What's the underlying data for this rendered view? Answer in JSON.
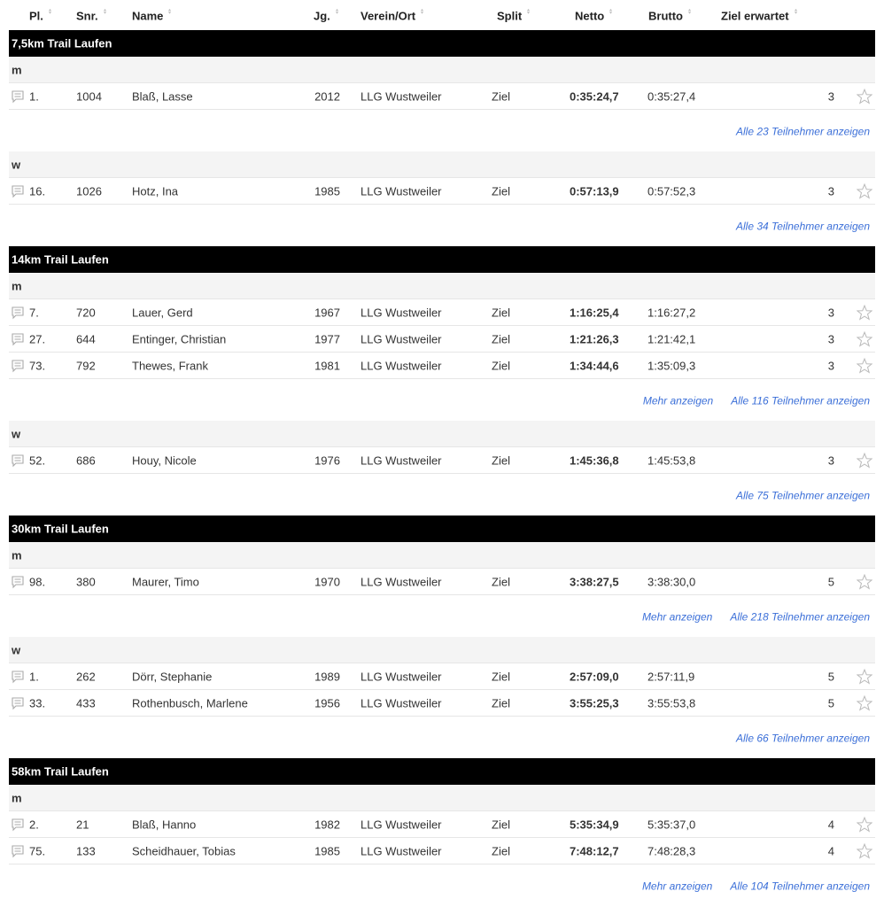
{
  "header": {
    "columns": [
      "Pl.",
      "Snr.",
      "Name",
      "Jg.",
      "Verein/Ort",
      "Split",
      "Netto",
      "Brutto",
      "Ziel erwartet"
    ]
  },
  "sections": [
    {
      "title": "7,5km Trail Laufen",
      "groups": [
        {
          "label": "m",
          "rows": [
            [
              "1.",
              "1004",
              "Blaß, Lasse",
              "2012",
              "LLG Wustweiler",
              "Ziel",
              "0:35:24,7",
              "0:35:27,4",
              "3"
            ]
          ],
          "links": [
            "Alle 23 Teilnehmer anzeigen"
          ]
        },
        {
          "label": "w",
          "rows": [
            [
              "16.",
              "1026",
              "Hotz, Ina",
              "1985",
              "LLG Wustweiler",
              "Ziel",
              "0:57:13,9",
              "0:57:52,3",
              "3"
            ]
          ],
          "links": [
            "Alle 34 Teilnehmer anzeigen"
          ]
        }
      ]
    },
    {
      "title": "14km Trail Laufen",
      "groups": [
        {
          "label": "m",
          "rows": [
            [
              "7.",
              "720",
              "Lauer, Gerd",
              "1967",
              "LLG Wustweiler",
              "Ziel",
              "1:16:25,4",
              "1:16:27,2",
              "3"
            ],
            [
              "27.",
              "644",
              "Entinger, Christian",
              "1977",
              "LLG Wustweiler",
              "Ziel",
              "1:21:26,3",
              "1:21:42,1",
              "3"
            ],
            [
              "73.",
              "792",
              "Thewes, Frank",
              "1981",
              "LLG Wustweiler",
              "Ziel",
              "1:34:44,6",
              "1:35:09,3",
              "3"
            ]
          ],
          "links": [
            "Mehr anzeigen",
            "Alle 116 Teilnehmer anzeigen"
          ]
        },
        {
          "label": "w",
          "rows": [
            [
              "52.",
              "686",
              "Houy, Nicole",
              "1976",
              "LLG Wustweiler",
              "Ziel",
              "1:45:36,8",
              "1:45:53,8",
              "3"
            ]
          ],
          "links": [
            "Alle 75 Teilnehmer anzeigen"
          ]
        }
      ]
    },
    {
      "title": "30km Trail Laufen",
      "groups": [
        {
          "label": "m",
          "rows": [
            [
              "98.",
              "380",
              "Maurer, Timo",
              "1970",
              "LLG Wustweiler",
              "Ziel",
              "3:38:27,5",
              "3:38:30,0",
              "5"
            ]
          ],
          "links": [
            "Mehr anzeigen",
            "Alle 218 Teilnehmer anzeigen"
          ]
        },
        {
          "label": "w",
          "rows": [
            [
              "1.",
              "262",
              "Dörr, Stephanie",
              "1989",
              "LLG Wustweiler",
              "Ziel",
              "2:57:09,0",
              "2:57:11,9",
              "5"
            ],
            [
              "33.",
              "433",
              "Rothenbusch, Marlene",
              "1956",
              "LLG Wustweiler",
              "Ziel",
              "3:55:25,3",
              "3:55:53,8",
              "5"
            ]
          ],
          "links": [
            "Alle 66 Teilnehmer anzeigen"
          ]
        }
      ]
    },
    {
      "title": "58km Trail Laufen",
      "groups": [
        {
          "label": "m",
          "rows": [
            [
              "2.",
              "21",
              "Blaß, Hanno",
              "1982",
              "LLG Wustweiler",
              "Ziel",
              "5:35:34,9",
              "5:35:37,0",
              "4"
            ],
            [
              "75.",
              "133",
              "Scheidhauer, Tobias",
              "1985",
              "LLG Wustweiler",
              "Ziel",
              "7:48:12,7",
              "7:48:28,3",
              "4"
            ]
          ],
          "links": [
            "Mehr anzeigen",
            "Alle 104 Teilnehmer anzeigen"
          ]
        }
      ]
    }
  ]
}
